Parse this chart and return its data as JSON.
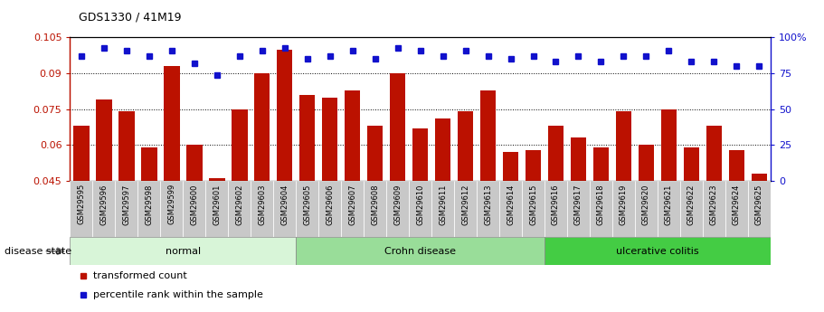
{
  "title": "GDS1330 / 41M19",
  "samples": [
    "GSM29595",
    "GSM29596",
    "GSM29597",
    "GSM29598",
    "GSM29599",
    "GSM29600",
    "GSM29601",
    "GSM29602",
    "GSM29603",
    "GSM29604",
    "GSM29605",
    "GSM29606",
    "GSM29607",
    "GSM29608",
    "GSM29609",
    "GSM29610",
    "GSM29611",
    "GSM29612",
    "GSM29613",
    "GSM29614",
    "GSM29615",
    "GSM29616",
    "GSM29617",
    "GSM29618",
    "GSM29619",
    "GSM29620",
    "GSM29621",
    "GSM29622",
    "GSM29623",
    "GSM29624",
    "GSM29625"
  ],
  "bar_values": [
    0.068,
    0.079,
    0.074,
    0.059,
    0.093,
    0.06,
    0.046,
    0.075,
    0.09,
    0.1,
    0.081,
    0.08,
    0.083,
    0.068,
    0.09,
    0.067,
    0.071,
    0.074,
    0.083,
    0.057,
    0.058,
    0.068,
    0.063,
    0.059,
    0.074,
    0.06,
    0.075,
    0.059,
    0.068,
    0.058,
    0.048
  ],
  "blue_pct": [
    87,
    93,
    91,
    87,
    91,
    82,
    74,
    87,
    91,
    93,
    85,
    87,
    91,
    85,
    93,
    91,
    87,
    91,
    87,
    85,
    87,
    83,
    87,
    83,
    87,
    87,
    91,
    83,
    83,
    80,
    80
  ],
  "ylim": [
    0.045,
    0.105
  ],
  "yticks": [
    0.045,
    0.06,
    0.075,
    0.09,
    0.105
  ],
  "ytick_labels": [
    "0.045",
    "0.06",
    "0.075",
    "0.09",
    "0.105"
  ],
  "right_yticks": [
    0,
    25,
    50,
    75,
    100
  ],
  "right_ytick_labels": [
    "0",
    "25",
    "50",
    "75",
    "100%"
  ],
  "groups": [
    {
      "label": "normal",
      "start": 0,
      "end": 10,
      "color": "#d8f5d8"
    },
    {
      "label": "Crohn disease",
      "start": 10,
      "end": 21,
      "color": "#99dd99"
    },
    {
      "label": "ulcerative colitis",
      "start": 21,
      "end": 31,
      "color": "#44cc44"
    }
  ],
  "bar_color": "#bb1100",
  "blue_color": "#1111cc",
  "bg_color": "#ffffff",
  "xtick_bg": "#cccccc",
  "disease_state_label": "disease state",
  "legend_bar": "transformed count",
  "legend_dot": "percentile rank within the sample"
}
